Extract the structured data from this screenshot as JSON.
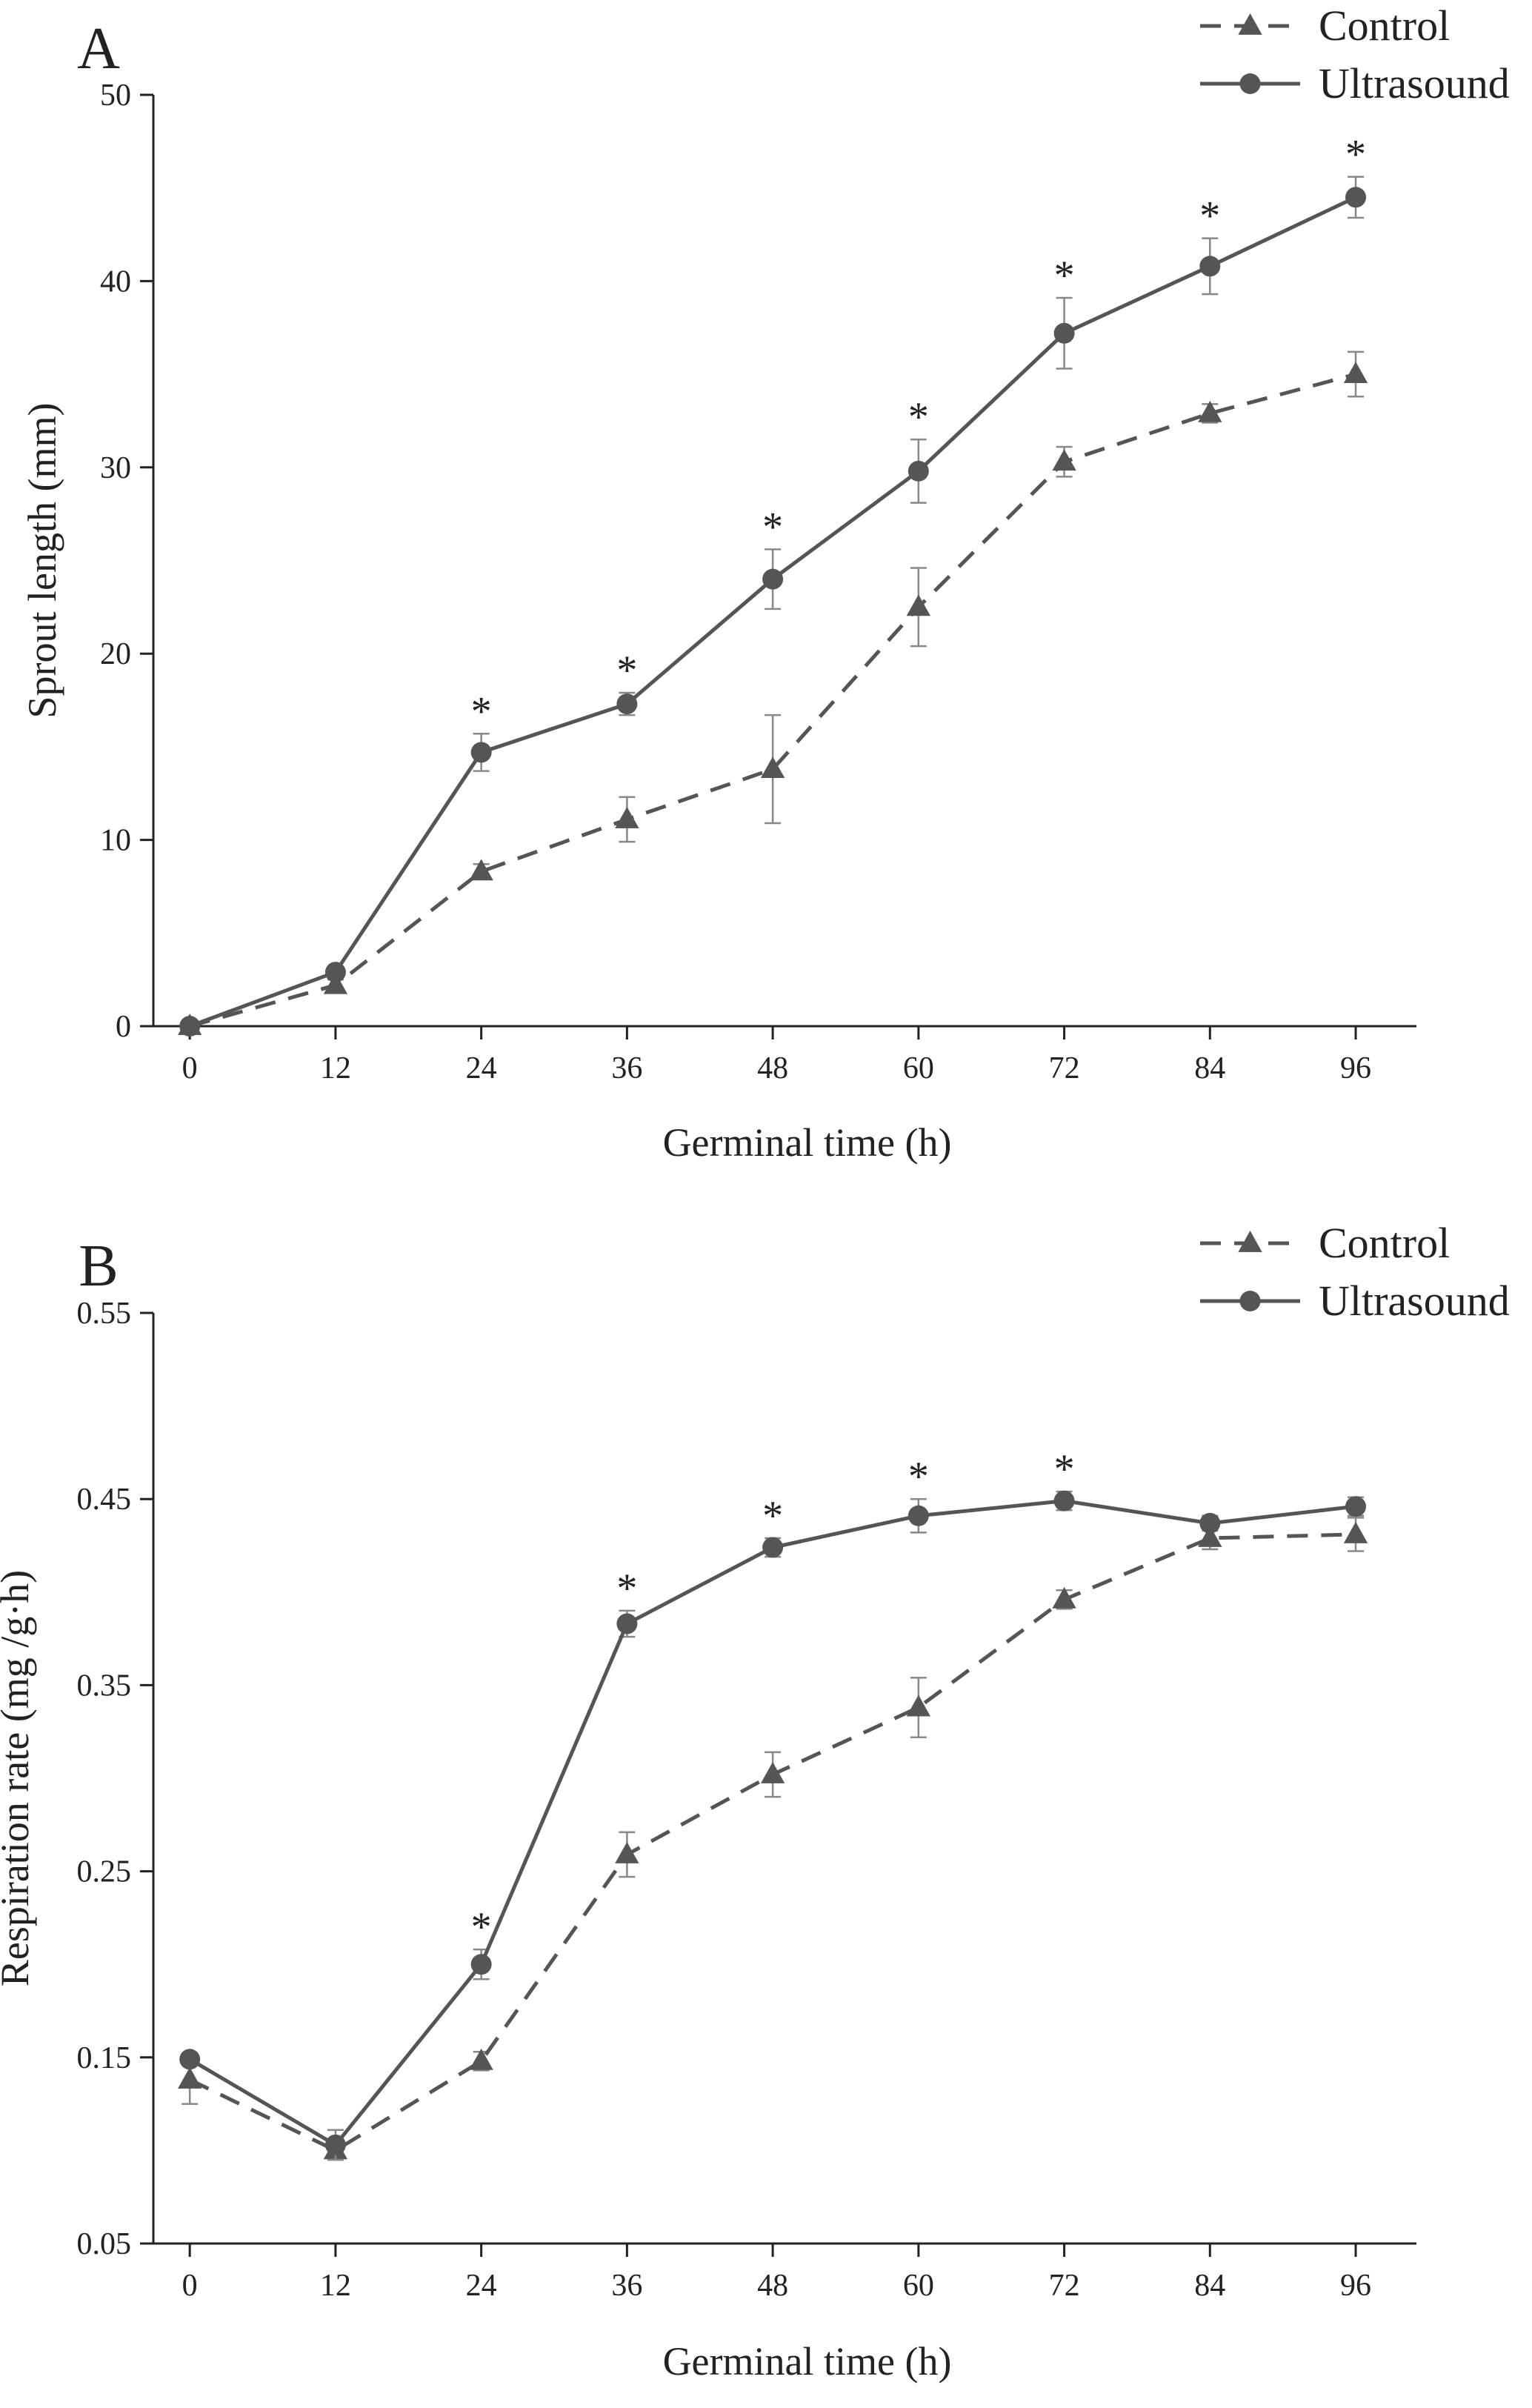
{
  "figure": {
    "series_styles": {
      "Control": {
        "color": "#555555",
        "marker": "triangle",
        "dash": true
      },
      "Ultrasound": {
        "color": "#555555",
        "marker": "circle",
        "dash": false
      }
    }
  },
  "chart_data": [
    {
      "type": "line",
      "panel": "A",
      "title": "",
      "xlabel": "Germinal time (h)",
      "ylabel": "Sprout length (mm)",
      "x": [
        0,
        12,
        24,
        36,
        48,
        60,
        72,
        84,
        96
      ],
      "xticks": [
        "0",
        "12",
        "24",
        "36",
        "48",
        "60",
        "72",
        "84",
        "96"
      ],
      "xlim": [
        -3,
        101
      ],
      "ylim": [
        0,
        50
      ],
      "yticks": [
        "0",
        "10",
        "20",
        "30",
        "40",
        "50"
      ],
      "ytick_values": [
        0,
        10,
        20,
        30,
        40,
        50
      ],
      "legend": [
        "Control",
        "Ultrasound"
      ],
      "legend_position": "top-right",
      "series": [
        {
          "name": "Control",
          "values": [
            0,
            2.2,
            8.3,
            11.1,
            13.8,
            22.5,
            30.3,
            32.9,
            35.0
          ],
          "errors": [
            0,
            0.3,
            0.4,
            1.2,
            2.9,
            2.1,
            0.8,
            0.5,
            1.2
          ]
        },
        {
          "name": "Ultrasound",
          "values": [
            0,
            2.9,
            14.7,
            17.3,
            24.0,
            29.8,
            37.2,
            40.8,
            44.5
          ],
          "errors": [
            0,
            0.3,
            1.0,
            0.6,
            1.6,
            1.7,
            1.9,
            1.5,
            1.1
          ]
        }
      ],
      "significance": [
        "",
        "",
        "*",
        "*",
        "*",
        "*",
        "*",
        "*",
        "*"
      ]
    },
    {
      "type": "line",
      "panel": "B",
      "title": "",
      "xlabel": "Germinal time (h)",
      "ylabel": "Respiration rate (mg /g·h)",
      "x": [
        0,
        12,
        24,
        36,
        48,
        60,
        72,
        84,
        96
      ],
      "xticks": [
        "0",
        "12",
        "24",
        "36",
        "48",
        "60",
        "72",
        "84",
        "96"
      ],
      "xlim": [
        -3,
        101
      ],
      "ylim": [
        0.05,
        0.55
      ],
      "yticks": [
        "0.05",
        "0.15",
        "0.25",
        "0.35",
        "0.45",
        "0.55"
      ],
      "ytick_values": [
        0.05,
        0.15,
        0.25,
        0.35,
        0.45,
        0.55
      ],
      "legend": [
        "Control",
        "Ultrasound"
      ],
      "legend_position": "top-right",
      "series": [
        {
          "name": "Control",
          "values": [
            0.138,
            0.1,
            0.148,
            0.259,
            0.302,
            0.338,
            0.396,
            0.429,
            0.431
          ],
          "errors": [
            0.013,
            0.005,
            0.005,
            0.012,
            0.012,
            0.016,
            0.005,
            0.006,
            0.009
          ]
        },
        {
          "name": "Ultrasound",
          "values": [
            0.149,
            0.103,
            0.2,
            0.383,
            0.424,
            0.441,
            0.449,
            0.437,
            0.446
          ],
          "errors": [
            0.003,
            0.008,
            0.008,
            0.007,
            0.005,
            0.009,
            0.005,
            0.004,
            0.005
          ]
        }
      ],
      "significance": [
        "",
        "",
        "*",
        "*",
        "*",
        "*",
        "*",
        "",
        ""
      ]
    }
  ]
}
